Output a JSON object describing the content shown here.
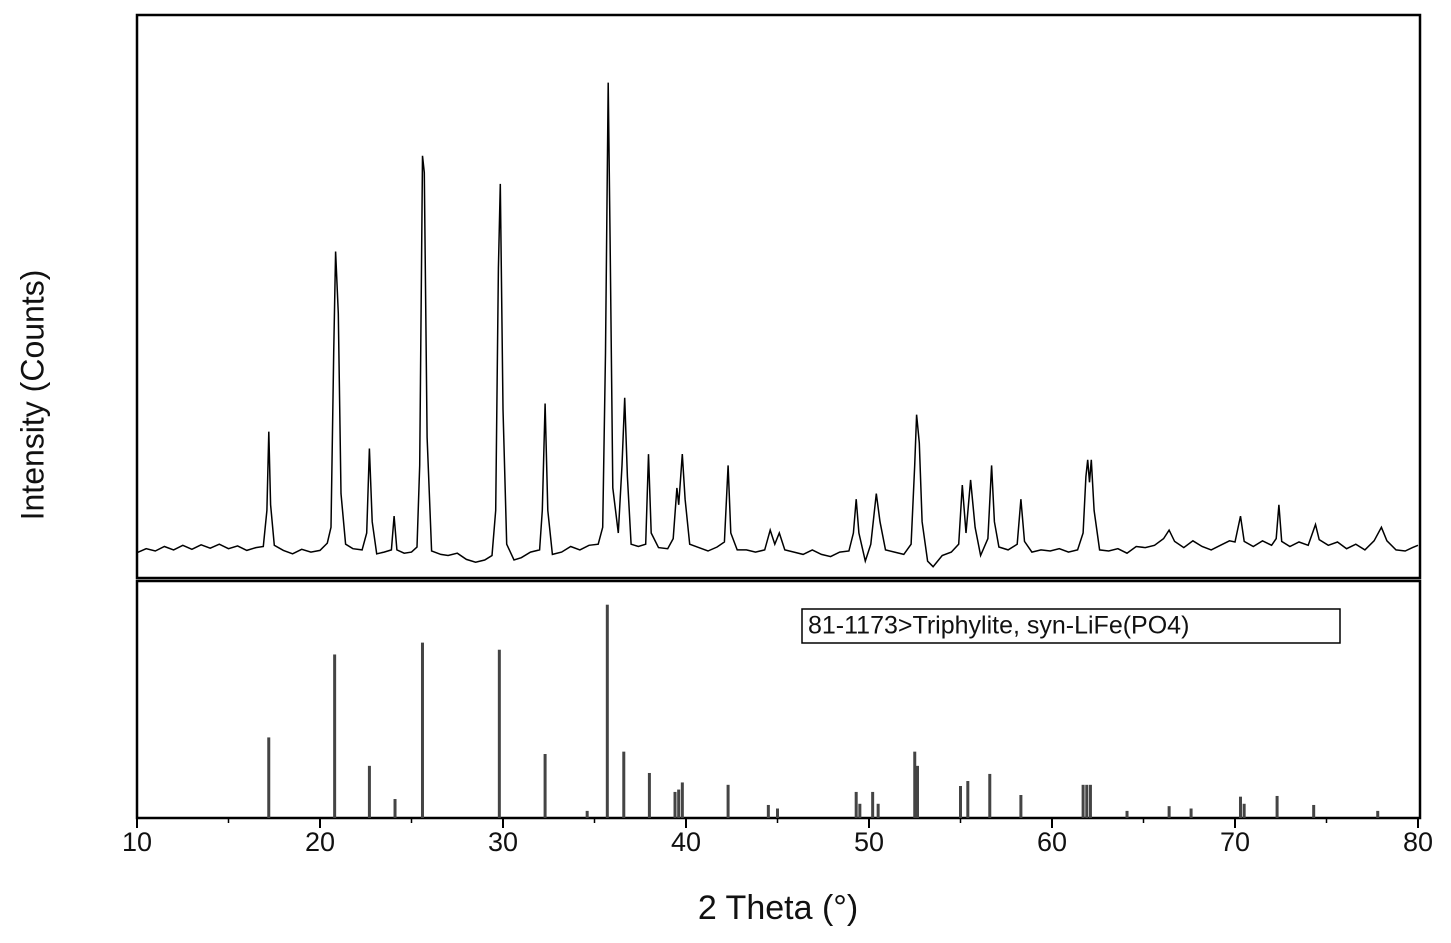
{
  "chart_data": [
    {
      "type": "line",
      "ylabel": "Intensity (Counts)",
      "color": "#000000",
      "xlim": [
        10,
        80
      ],
      "ylim": [
        0,
        100
      ],
      "x": [
        10.0,
        10.5,
        11.0,
        11.5,
        12.0,
        12.5,
        13.0,
        13.5,
        14.0,
        14.5,
        15.0,
        15.5,
        16.0,
        16.5,
        16.9,
        17.1,
        17.2,
        17.3,
        17.5,
        18.0,
        18.5,
        19.0,
        19.5,
        20.0,
        20.4,
        20.6,
        20.75,
        20.85,
        21.0,
        21.15,
        21.4,
        21.8,
        22.3,
        22.55,
        22.7,
        22.85,
        23.1,
        23.5,
        23.9,
        24.05,
        24.2,
        24.6,
        25.0,
        25.3,
        25.45,
        25.6,
        25.7,
        25.85,
        26.1,
        26.6,
        27.0,
        27.5,
        28.0,
        28.5,
        29.0,
        29.4,
        29.6,
        29.75,
        29.85,
        30.0,
        30.2,
        30.6,
        31.0,
        31.5,
        32.0,
        32.15,
        32.3,
        32.45,
        32.7,
        33.2,
        33.7,
        34.2,
        34.7,
        35.2,
        35.45,
        35.6,
        35.75,
        35.85,
        36.0,
        36.3,
        36.5,
        36.65,
        36.8,
        37.0,
        37.4,
        37.8,
        37.95,
        38.1,
        38.5,
        39.0,
        39.3,
        39.5,
        39.6,
        39.8,
        39.95,
        40.2,
        40.7,
        41.2,
        41.7,
        42.1,
        42.3,
        42.45,
        42.8,
        43.3,
        43.8,
        44.3,
        44.6,
        44.85,
        45.1,
        45.4,
        45.9,
        46.4,
        46.9,
        47.4,
        47.9,
        48.4,
        48.9,
        49.15,
        49.3,
        49.45,
        49.8,
        50.1,
        50.4,
        50.6,
        50.9,
        51.4,
        51.9,
        52.3,
        52.5,
        52.6,
        52.75,
        52.9,
        53.2,
        53.5,
        54.0,
        54.5,
        54.9,
        55.1,
        55.3,
        55.55,
        55.8,
        56.1,
        56.5,
        56.7,
        56.85,
        57.1,
        57.6,
        58.1,
        58.3,
        58.5,
        58.9,
        59.4,
        59.9,
        60.4,
        60.9,
        61.4,
        61.7,
        61.85,
        61.95,
        62.05,
        62.15,
        62.3,
        62.6,
        63.1,
        63.6,
        64.1,
        64.6,
        65.1,
        65.6,
        66.1,
        66.4,
        66.7,
        67.2,
        67.7,
        68.2,
        68.7,
        69.2,
        69.7,
        70.0,
        70.3,
        70.5,
        71.0,
        71.5,
        72.0,
        72.25,
        72.4,
        72.55,
        73.0,
        73.5,
        74.0,
        74.4,
        74.6,
        75.1,
        75.6,
        76.1,
        76.6,
        77.1,
        77.6,
        78.0,
        78.3,
        78.8,
        79.3,
        79.7,
        80.0
      ],
      "values": [
        4.5,
        5.2,
        4.8,
        5.6,
        5.0,
        5.8,
        5.1,
        5.9,
        5.3,
        6.0,
        5.2,
        5.7,
        4.9,
        5.4,
        5.6,
        12,
        26,
        13,
        5.8,
        4.9,
        4.3,
        5.1,
        4.6,
        4.9,
        6.2,
        9,
        40,
        58,
        47,
        15,
        6.0,
        5.2,
        5.0,
        8,
        23,
        10,
        4.3,
        4.6,
        5.0,
        11,
        5.0,
        4.4,
        4.6,
        5.5,
        20,
        75,
        72,
        25,
        4.8,
        4.2,
        4.0,
        4.4,
        3.3,
        2.8,
        3.2,
        4.0,
        12,
        55,
        70,
        30,
        6,
        3.2,
        3.6,
        4.6,
        5.0,
        12,
        31,
        12,
        4.2,
        4.6,
        5.6,
        5.0,
        5.8,
        6.0,
        9,
        40,
        88,
        60,
        16,
        8,
        20,
        32,
        18,
        6,
        5.6,
        6.0,
        22,
        8,
        5.4,
        5.2,
        7,
        16,
        13,
        22,
        14,
        6,
        5.4,
        4.8,
        5.5,
        6.4,
        20,
        8,
        5.0,
        5.0,
        4.6,
        5.0,
        8.5,
        6.0,
        8,
        5.0,
        4.6,
        4.2,
        5.0,
        4.2,
        3.8,
        4.6,
        4.8,
        8,
        14,
        8,
        3.0,
        6,
        15,
        10,
        5,
        4.6,
        4.2,
        6,
        20,
        29,
        24,
        10,
        3.0,
        2.0,
        4.0,
        4.6,
        6,
        16.5,
        8,
        17.4,
        9,
        4.0,
        7,
        20,
        10,
        5.5,
        5.0,
        6,
        14,
        6.5,
        4.6,
        5.0,
        4.8,
        5.2,
        4.6,
        5.0,
        8,
        18,
        21,
        17,
        21,
        12,
        5,
        4.8,
        5.2,
        4.4,
        5.6,
        5.4,
        5.8,
        7,
        8.5,
        6.5,
        5.4,
        6.6,
        5.6,
        5.0,
        5.8,
        6.6,
        6.4,
        11,
        6.5,
        5.6,
        6.6,
        5.8,
        7,
        13,
        6.5,
        5.6,
        6.4,
        5.8,
        9.5,
        6.8,
        5.8,
        6.4,
        5.2,
        6.0,
        5.0,
        6.6,
        9,
        6.6,
        5.0,
        4.8,
        5.4,
        5.8
      ]
    },
    {
      "type": "bar",
      "xlabel": "2 Theta (°)",
      "annotation": "81-1173>Triphylite, syn-LiFe(PO4)",
      "color": "#444444",
      "xlim": [
        10,
        80
      ],
      "ylim": [
        0,
        100
      ],
      "xticks": [
        10,
        20,
        30,
        40,
        50,
        60,
        70,
        80
      ],
      "xminorticks": [
        15,
        25,
        35,
        45,
        55,
        65,
        75
      ],
      "x": [
        17.2,
        20.8,
        22.7,
        24.1,
        25.6,
        29.8,
        32.3,
        34.6,
        35.7,
        36.6,
        38.0,
        39.4,
        39.6,
        39.8,
        42.3,
        44.5,
        45.0,
        49.3,
        49.5,
        50.2,
        50.5,
        52.5,
        52.65,
        55.0,
        55.4,
        56.6,
        58.3,
        61.7,
        61.9,
        62.1,
        64.1,
        66.4,
        67.6,
        70.3,
        70.5,
        72.3,
        74.3,
        77.8
      ],
      "values": [
        34,
        69,
        22,
        8,
        74,
        71,
        27,
        3,
        90,
        28,
        19,
        11,
        12,
        15,
        14,
        5.5,
        4,
        11,
        6,
        11,
        6,
        28,
        22,
        13.5,
        15.6,
        18.6,
        9.7,
        14,
        14,
        14,
        3,
        5,
        4,
        9,
        6,
        9.3,
        5.5,
        3
      ]
    }
  ]
}
